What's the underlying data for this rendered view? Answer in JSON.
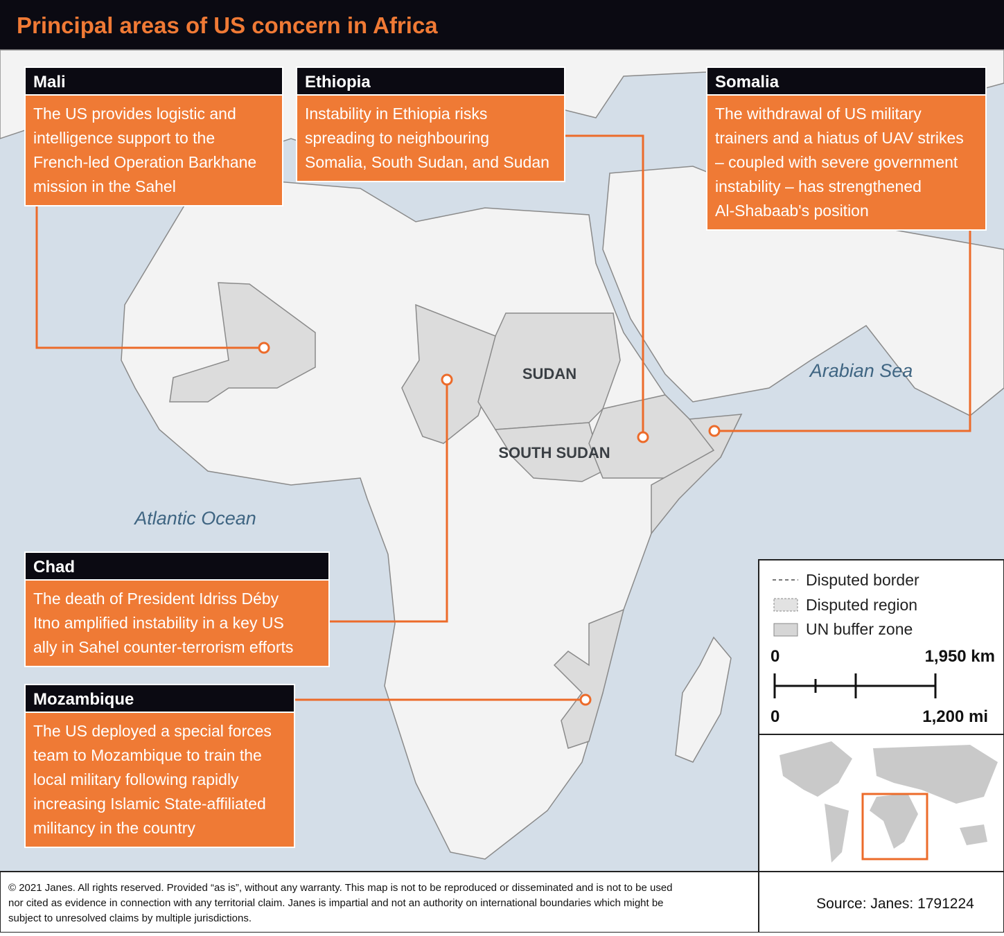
{
  "header": {
    "title": "Principal areas of US concern in Africa"
  },
  "callouts": [
    {
      "title": "Mali",
      "lines": [
        "The US provides logistic and",
        "intelligence support to the",
        "French-led Operation Barkhane",
        "mission in the Sahel"
      ]
    },
    {
      "title": "Ethiopia",
      "lines": [
        "Instability in Ethiopia risks",
        "spreading to neighbouring",
        "Somalia, South Sudan, and Sudan"
      ]
    },
    {
      "title": "Somalia",
      "lines": [
        "The withdrawal of US military",
        "trainers and a hiatus of UAV strikes",
        "– coupled with severe government",
        "instability – has strengthened",
        "Al-Shabaab's position"
      ]
    },
    {
      "title": "Chad",
      "lines": [
        "The death of President Idriss Déby",
        "Itno amplified instability in a key US",
        "ally in Sahel counter-terrorism efforts"
      ]
    },
    {
      "title": "Mozambique",
      "lines": [
        "The US deployed a special forces",
        "team to Mozambique to train the",
        "local military following rapidly",
        "increasing Islamic State-affiliated",
        "militancy in the country"
      ]
    }
  ],
  "map_labels": {
    "countries": [
      "SUDAN",
      "SOUTH SUDAN"
    ],
    "seas": [
      "Atlantic Ocean",
      "Arabian Sea"
    ]
  },
  "legend": {
    "items": [
      "Disputed border",
      "Disputed region",
      "UN buffer zone"
    ]
  },
  "scale": {
    "km_start": "0",
    "km_end": "1,950 km",
    "mi_start": "0",
    "mi_end": "1,200 mi"
  },
  "footer": {
    "copyright": [
      "© 2021 Janes. All rights reserved. Provided “as is”, without any warranty. This map is not to be reproduced or disseminated and is not to be used",
      "nor cited as evidence in connection with any territorial claim. Janes is impartial and not an authority on international boundaries which might be",
      "subject to unresolved claims by multiple jurisdictions."
    ],
    "source": "Source: Janes: 1791224"
  }
}
